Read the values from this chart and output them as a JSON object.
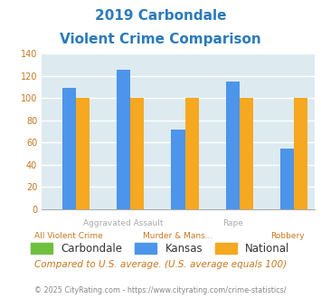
{
  "title_line1": "2019 Carbondale",
  "title_line2": "Violent Crime Comparison",
  "title_color": "#2b7bba",
  "categories": [
    "All Violent Crime",
    "Aggravated Assault",
    "Murder & Mans...",
    "Rape",
    "Robbery"
  ],
  "series": {
    "Carbondale": [
      0,
      0,
      0,
      0,
      0
    ],
    "Kansas": [
      109,
      126,
      72,
      115,
      55
    ],
    "National": [
      100,
      100,
      100,
      100,
      100
    ]
  },
  "bar_colors": {
    "Carbondale": "#70c040",
    "Kansas": "#4d94eb",
    "National": "#f5a820"
  },
  "ylim": [
    0,
    140
  ],
  "yticks": [
    0,
    20,
    40,
    60,
    80,
    100,
    120,
    140
  ],
  "plot_bg": "#ddeaf0",
  "grid_color": "#c5d8e0",
  "footnote1": "Compared to U.S. average. (U.S. average equals 100)",
  "footnote2": "© 2025 CityRating.com - https://www.cityrating.com/crime-statistics/",
  "footnote1_color": "#c87820",
  "footnote1_link_color": "#2b7bba",
  "footnote2_color": "#888888",
  "bar_width": 0.25,
  "top_label_color": "#aaaaaa",
  "bottom_label_color": "#c87820",
  "ytick_color": "#c87820"
}
